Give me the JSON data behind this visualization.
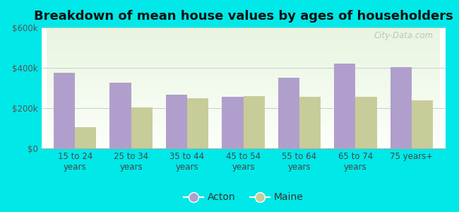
{
  "categories": [
    "15 to 24\nyears",
    "25 to 34\nyears",
    "35 to 44\nyears",
    "45 to 54\nyears",
    "55 to 64\nyears",
    "65 to 74\nyears",
    "75 years+"
  ],
  "acton_values": [
    375000,
    325000,
    265000,
    255000,
    350000,
    420000,
    405000
  ],
  "maine_values": [
    105000,
    205000,
    250000,
    260000,
    255000,
    255000,
    240000
  ],
  "acton_color": "#b09fcc",
  "maine_color": "#c8cc99",
  "title": "Breakdown of mean house values by ages of householders",
  "title_fontsize": 13,
  "ylim": [
    0,
    600000
  ],
  "yticks": [
    0,
    200000,
    400000,
    600000
  ],
  "ytick_labels": [
    "$0",
    "$200k",
    "$400k",
    "$600k"
  ],
  "background_color": "#00e8e8",
  "plot_bg_top": "#e8f5e0",
  "plot_bg_bottom": "#f8fff8",
  "legend_labels": [
    "Acton",
    "Maine"
  ],
  "bar_width": 0.38,
  "watermark": "City-Data.com"
}
